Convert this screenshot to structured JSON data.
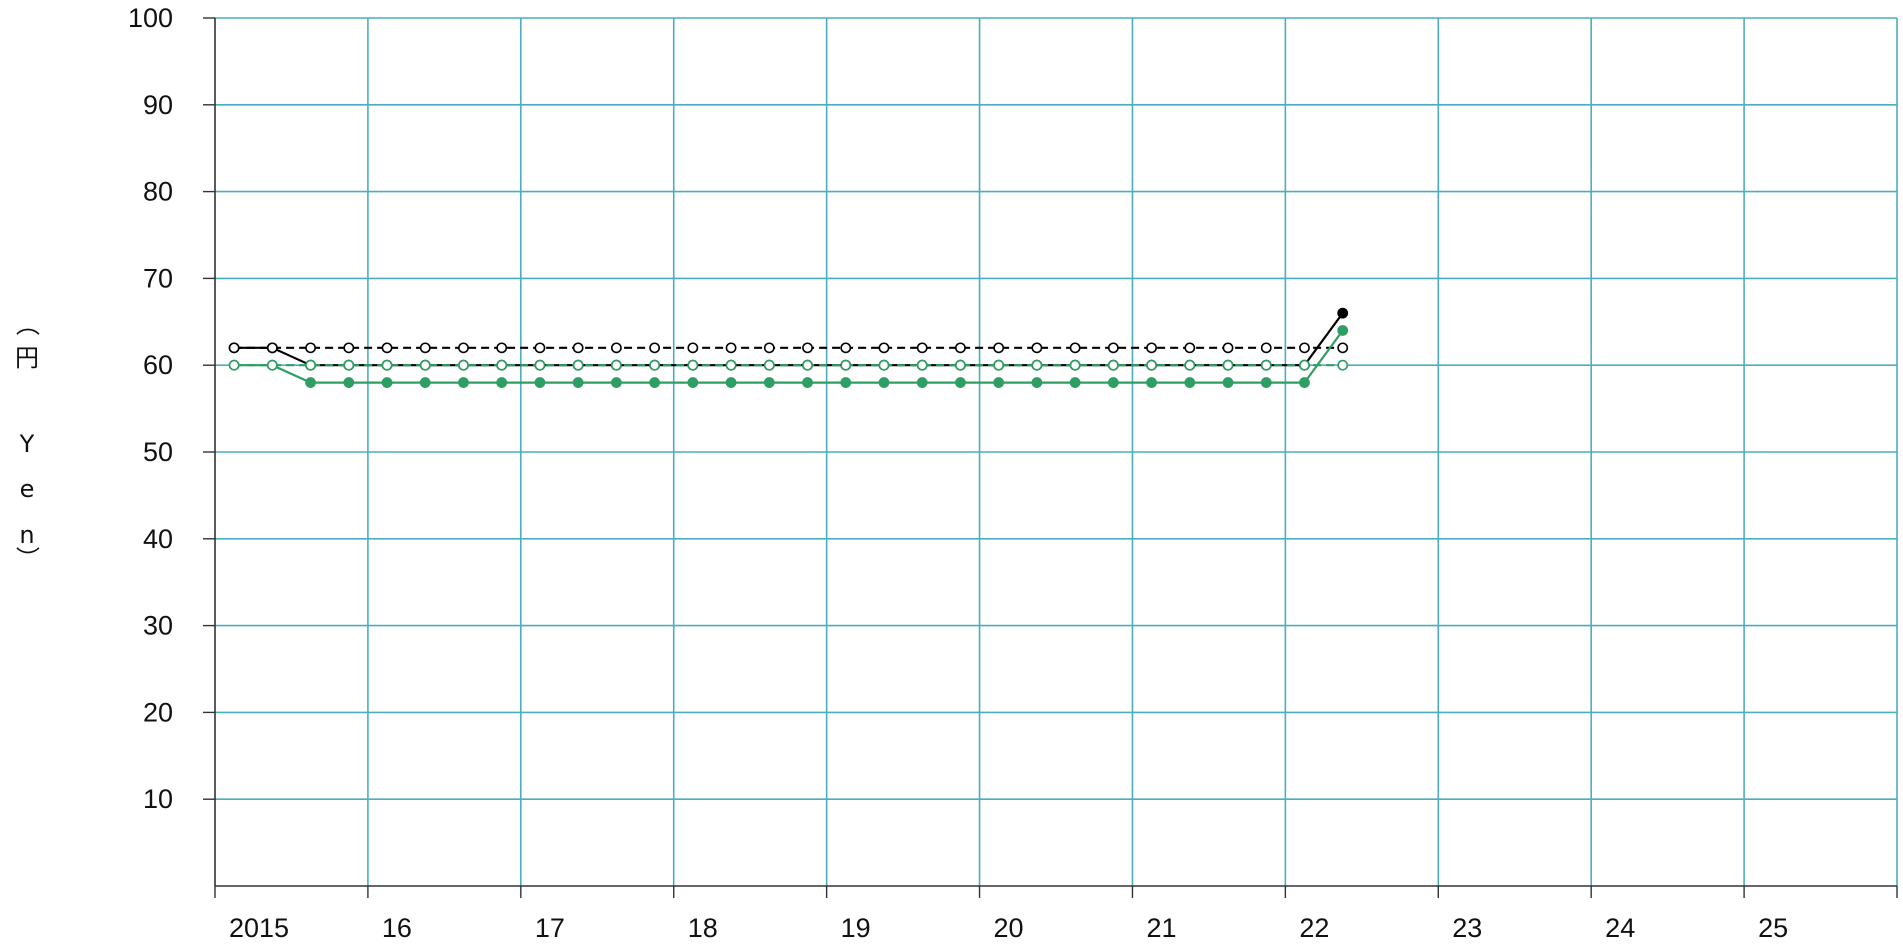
{
  "chart_data": {
    "type": "line",
    "title": "",
    "xlabel": "",
    "ylabel": "（円 Yen）",
    "ylabel_chars": [
      "（",
      "円",
      "Y",
      "e",
      "n",
      "）"
    ],
    "ylim": [
      0,
      100
    ],
    "y_ticks": [
      10,
      20,
      30,
      40,
      50,
      60,
      70,
      80,
      90,
      100
    ],
    "xlim": [
      2015,
      2026
    ],
    "x_tick_labels": [
      {
        "x": 2015,
        "label": "2015"
      },
      {
        "x": 2016,
        "label": "16"
      },
      {
        "x": 2017,
        "label": "17"
      },
      {
        "x": 2018,
        "label": "18"
      },
      {
        "x": 2019,
        "label": "19"
      },
      {
        "x": 2020,
        "label": "20"
      },
      {
        "x": 2021,
        "label": "21"
      },
      {
        "x": 2022,
        "label": "22"
      },
      {
        "x": 2023,
        "label": "23"
      },
      {
        "x": 2024,
        "label": "24"
      },
      {
        "x": 2025,
        "label": "25"
      }
    ],
    "grid": true,
    "legend": "none",
    "x": [
      2015.125,
      2015.375,
      2015.625,
      2015.875,
      2016.125,
      2016.375,
      2016.625,
      2016.875,
      2017.125,
      2017.375,
      2017.625,
      2017.875,
      2018.125,
      2018.375,
      2018.625,
      2018.875,
      2019.125,
      2019.375,
      2019.625,
      2019.875,
      2020.125,
      2020.375,
      2020.625,
      2020.875,
      2021.125,
      2021.375,
      2021.625,
      2021.875,
      2022.125,
      2022.375
    ],
    "series": [
      {
        "color": "#000000",
        "line": "solid",
        "marker": "filled",
        "values": [
          62,
          62,
          60,
          60,
          60,
          60,
          60,
          60,
          60,
          60,
          60,
          60,
          60,
          60,
          60,
          60,
          60,
          60,
          60,
          60,
          60,
          60,
          60,
          60,
          60,
          60,
          60,
          60,
          60,
          66
        ]
      },
      {
        "color": "#000000",
        "line": "dashed",
        "marker": "open",
        "values": [
          62,
          62,
          62,
          62,
          62,
          62,
          62,
          62,
          62,
          62,
          62,
          62,
          62,
          62,
          62,
          62,
          62,
          62,
          62,
          62,
          62,
          62,
          62,
          62,
          62,
          62,
          62,
          62,
          62,
          62
        ]
      },
      {
        "color": "#2e9e63",
        "line": "solid",
        "marker": "filled",
        "values": [
          60,
          60,
          58,
          58,
          58,
          58,
          58,
          58,
          58,
          58,
          58,
          58,
          58,
          58,
          58,
          58,
          58,
          58,
          58,
          58,
          58,
          58,
          58,
          58,
          58,
          58,
          58,
          58,
          58,
          64
        ]
      },
      {
        "color": "#2e9e63",
        "line": "dashed",
        "marker": "open",
        "values": [
          60,
          60,
          60,
          60,
          60,
          60,
          60,
          60,
          60,
          60,
          60,
          60,
          60,
          60,
          60,
          60,
          60,
          60,
          60,
          60,
          60,
          60,
          60,
          60,
          60,
          60,
          60,
          60,
          60,
          60
        ]
      }
    ],
    "colors": {
      "grid": "#4aaebf",
      "axis": "#333333",
      "text": "#111111"
    }
  }
}
